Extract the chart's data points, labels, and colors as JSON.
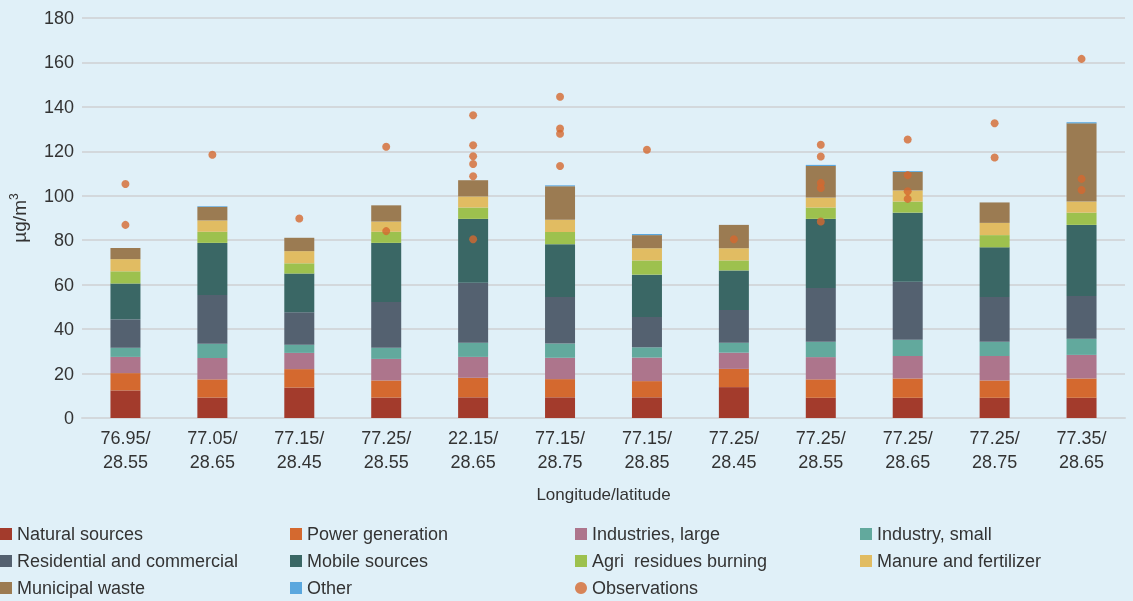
{
  "chart_data": {
    "type": "bar",
    "stacked": true,
    "xlabel": "Longitude/latitude",
    "ylabel": "µg/m$^{3}$",
    "ylim": [
      0,
      180
    ],
    "yticks": [
      0,
      20,
      40,
      60,
      80,
      100,
      120,
      140,
      160,
      180
    ],
    "grid": "y",
    "legend": "bottom",
    "categories": [
      "76.95/28.55",
      "77.05/28.65",
      "77.15/28.45",
      "77.25/28.55",
      "22.15/28.65",
      "77.15/28.75",
      "77.15/28.85",
      "77.25/28.45",
      "77.25/28.55",
      "77.25/28.65",
      "77.25/28.75",
      "77.35/28.65"
    ],
    "series": [
      {
        "name": "Natural sources",
        "color": "#a33b2c",
        "values": [
          12.4,
          9.2,
          13.7,
          9.2,
          9.3,
          9.3,
          9.3,
          13.9,
          9.1,
          9.1,
          9.1,
          9.1
        ]
      },
      {
        "name": "Power generation",
        "color": "#d4692f",
        "values": [
          7.8,
          8.2,
          8.3,
          7.7,
          8.8,
          8.2,
          7.3,
          8.2,
          8.3,
          8.7,
          7.8,
          8.7
        ]
      },
      {
        "name": "Industries, large",
        "color": "#ad758c",
        "values": [
          7.3,
          9.6,
          7.3,
          9.7,
          9.4,
          9.6,
          10.6,
          7.3,
          10.0,
          10.1,
          11.0,
          10.6
        ]
      },
      {
        "name": "Industry, small",
        "color": "#62a99d",
        "values": [
          4.1,
          6.4,
          3.7,
          5.0,
          6.4,
          6.4,
          4.6,
          4.5,
          6.9,
          7.3,
          6.4,
          7.3
        ]
      },
      {
        "name": "Residential and commercial",
        "color": "#546170",
        "values": [
          12.8,
          22.0,
          14.6,
          20.6,
          27.0,
          21.0,
          13.7,
          14.7,
          24.2,
          26.1,
          20.1,
          19.2
        ]
      },
      {
        "name": "Mobile sources",
        "color": "#3a6765",
        "values": [
          16.1,
          23.4,
          17.4,
          26.6,
          28.7,
          23.7,
          19.0,
          17.8,
          31.1,
          31.1,
          22.4,
          32.0
        ]
      },
      {
        "name": "Agri  residues burning",
        "color": "#9dc14e",
        "values": [
          5.5,
          5.0,
          4.6,
          5.0,
          5.1,
          5.5,
          6.4,
          4.5,
          5.1,
          5.0,
          5.5,
          5.5
        ]
      },
      {
        "name": "Manure and fertilizer",
        "color": "#e1bc62",
        "values": [
          5.5,
          5.1,
          5.5,
          4.6,
          5.0,
          5.5,
          5.5,
          5.5,
          4.5,
          5.0,
          5.5,
          5.0
        ]
      },
      {
        "name": "Municipal waste",
        "color": "#9b7b52",
        "values": [
          5.0,
          6.1,
          6.0,
          7.3,
          7.3,
          15.1,
          5.9,
          10.5,
          14.2,
          8.3,
          9.2,
          35.2
        ]
      },
      {
        "name": "Other",
        "color": "#5aa7de",
        "values": [
          0,
          0.3,
          0,
          0,
          0,
          0.4,
          0.5,
          0,
          0.5,
          0.4,
          0,
          0.5
        ]
      },
      {
        "name": "Observations",
        "type": "scatter",
        "color": "#d4692f",
        "marker": "circle",
        "values": [
          105.3,
          118.5,
          89.8,
          122.1,
          136.2,
          144.6,
          120.7,
          80.4,
          123.0,
          125.3,
          132.6,
          161.6
        ]
      },
      {
        "type": "scatter",
        "color": "#d4692f",
        "marker": "circle",
        "values": [
          86.9,
          null,
          null,
          84.1,
          122.7,
          130.3,
          null,
          null,
          117.7,
          109.3,
          117.2,
          107.6
        ]
      },
      {
        "type": "scatter",
        "color": "#d4692f",
        "marker": "circle",
        "values": [
          null,
          null,
          null,
          null,
          117.8,
          127.9,
          null,
          null,
          105.8,
          102.0,
          null,
          102.6
        ]
      },
      {
        "type": "scatter",
        "color": "#d4692f",
        "marker": "circle",
        "values": [
          null,
          null,
          null,
          null,
          114.3,
          113.4,
          null,
          null,
          103.5,
          98.6,
          null,
          null
        ]
      },
      {
        "type": "scatter",
        "color": "#d4692f",
        "marker": "circle",
        "values": [
          null,
          null,
          null,
          null,
          108.8,
          null,
          null,
          null,
          88.4,
          null,
          null,
          null
        ]
      },
      {
        "type": "scatter",
        "color": "#d4692f",
        "marker": "circle",
        "values": [
          null,
          null,
          null,
          null,
          80.4,
          null,
          null,
          null,
          null,
          null,
          null,
          null
        ]
      }
    ]
  }
}
